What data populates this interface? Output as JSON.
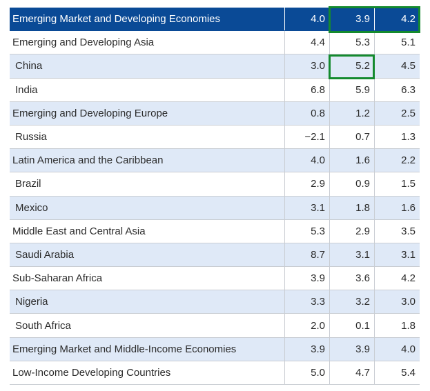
{
  "table": {
    "rows": [
      {
        "label": "Emerging Market and Developing Economies",
        "v1": "4.0",
        "v2": "3.9",
        "v3": "4.2",
        "style": "header",
        "indent": false
      },
      {
        "label": "Emerging and Developing Asia",
        "v1": "4.4",
        "v2": "5.3",
        "v3": "5.1",
        "style": "plain",
        "indent": false
      },
      {
        "label": "China",
        "v1": "3.0",
        "v2": "5.2",
        "v3": "4.5",
        "style": "alt",
        "indent": true
      },
      {
        "label": "India",
        "v1": "6.8",
        "v2": "5.9",
        "v3": "6.3",
        "style": "plain",
        "indent": true
      },
      {
        "label": "Emerging and Developing Europe",
        "v1": "0.8",
        "v2": "1.2",
        "v3": "2.5",
        "style": "alt",
        "indent": false
      },
      {
        "label": "Russia",
        "v1": "−2.1",
        "v2": "0.7",
        "v3": "1.3",
        "style": "plain",
        "indent": true
      },
      {
        "label": "Latin America and the Caribbean",
        "v1": "4.0",
        "v2": "1.6",
        "v3": "2.2",
        "style": "alt",
        "indent": false
      },
      {
        "label": "Brazil",
        "v1": "2.9",
        "v2": "0.9",
        "v3": "1.5",
        "style": "plain",
        "indent": true
      },
      {
        "label": "Mexico",
        "v1": "3.1",
        "v2": "1.8",
        "v3": "1.6",
        "style": "alt",
        "indent": true
      },
      {
        "label": "Middle East and Central Asia",
        "v1": "5.3",
        "v2": "2.9",
        "v3": "3.5",
        "style": "plain",
        "indent": false
      },
      {
        "label": "Saudi Arabia",
        "v1": "8.7",
        "v2": "3.1",
        "v3": "3.1",
        "style": "alt",
        "indent": true
      },
      {
        "label": "Sub-Saharan Africa",
        "v1": "3.9",
        "v2": "3.6",
        "v3": "4.2",
        "style": "plain",
        "indent": false
      },
      {
        "label": "Nigeria",
        "v1": "3.3",
        "v2": "3.2",
        "v3": "3.0",
        "style": "alt",
        "indent": true
      },
      {
        "label": "South Africa",
        "v1": "2.0",
        "v2": "0.1",
        "v3": "1.8",
        "style": "plain",
        "indent": true
      },
      {
        "label": "Emerging Market and Middle-Income Economies",
        "v1": "3.9",
        "v2": "3.9",
        "v3": "4.0",
        "style": "alt",
        "indent": false
      },
      {
        "label": "Low-Income Developing Countries",
        "v1": "5.0",
        "v2": "4.7",
        "v3": "5.4",
        "style": "plain",
        "indent": false
      }
    ]
  },
  "colors": {
    "header_bg": "#0a4a96",
    "alt_row_bg": "#dfe9f7",
    "highlight_border": "#148a2e"
  }
}
